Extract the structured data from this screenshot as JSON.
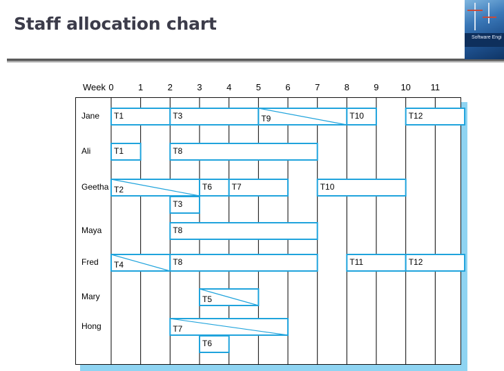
{
  "slide": {
    "title": "Staff allocation chart",
    "cover_text": "Software Engi"
  },
  "colors": {
    "bar_stroke": "#1fa3dc",
    "shadow": "#8fd4f2",
    "grid": "#000000",
    "title": "#3c3c4a"
  },
  "chart_data": {
    "type": "gantt",
    "week_label": "Week",
    "weeks": [
      "0",
      "1",
      "2",
      "3",
      "4",
      "5",
      "6",
      "7",
      "8",
      "9",
      "10",
      "11"
    ],
    "staff": [
      {
        "name": "Jane",
        "tasks": [
          {
            "label": "T1",
            "start": 0,
            "end": 2,
            "sub": 0,
            "diag": false
          },
          {
            "label": "T3",
            "start": 2,
            "end": 5,
            "sub": 0,
            "diag": false
          },
          {
            "label": "T9",
            "start": 5,
            "end": 8,
            "sub": 0,
            "diag": true
          },
          {
            "label": "T10",
            "start": 8,
            "end": 9,
            "sub": 0,
            "diag": false
          },
          {
            "label": "T12",
            "start": 10,
            "end": 12,
            "sub": 0,
            "diag": false
          }
        ]
      },
      {
        "name": "Ali",
        "tasks": [
          {
            "label": "T1",
            "start": 0,
            "end": 1,
            "sub": 0,
            "diag": false
          },
          {
            "label": "T8",
            "start": 2,
            "end": 7,
            "sub": 0,
            "diag": false
          }
        ]
      },
      {
        "name": "Geetha",
        "tasks": [
          {
            "label": "T2",
            "start": 0,
            "end": 3,
            "sub": 0,
            "diag": true
          },
          {
            "label": "T6",
            "start": 3,
            "end": 4,
            "sub": 0,
            "diag": false
          },
          {
            "label": "T7",
            "start": 4,
            "end": 6,
            "sub": 0,
            "diag": false
          },
          {
            "label": "T10",
            "start": 7,
            "end": 10,
            "sub": 0,
            "diag": false
          },
          {
            "label": "T3",
            "start": 2,
            "end": 3,
            "sub": 1,
            "diag": false
          }
        ]
      },
      {
        "name": "Maya",
        "tasks": [
          {
            "label": "T8",
            "start": 2,
            "end": 7,
            "sub": 0,
            "diag": false
          }
        ]
      },
      {
        "name": "Fred",
        "tasks": [
          {
            "label": "T4",
            "start": 0,
            "end": 2,
            "sub": 0,
            "diag": true
          },
          {
            "label": "T8",
            "start": 2,
            "end": 7,
            "sub": 0,
            "diag": false
          },
          {
            "label": "T11",
            "start": 8,
            "end": 10,
            "sub": 0,
            "diag": false
          },
          {
            "label": "T12",
            "start": 10,
            "end": 12,
            "sub": 0,
            "diag": false
          }
        ]
      },
      {
        "name": "Mary",
        "tasks": [
          {
            "label": "T5",
            "start": 3,
            "end": 5,
            "sub": 0,
            "diag": true
          }
        ]
      },
      {
        "name": "Hong",
        "tasks": [
          {
            "label": "T7",
            "start": 2,
            "end": 6,
            "sub": 0,
            "diag": true
          },
          {
            "label": "T6",
            "start": 3,
            "end": 4,
            "sub": 1,
            "diag": false
          }
        ]
      }
    ]
  }
}
